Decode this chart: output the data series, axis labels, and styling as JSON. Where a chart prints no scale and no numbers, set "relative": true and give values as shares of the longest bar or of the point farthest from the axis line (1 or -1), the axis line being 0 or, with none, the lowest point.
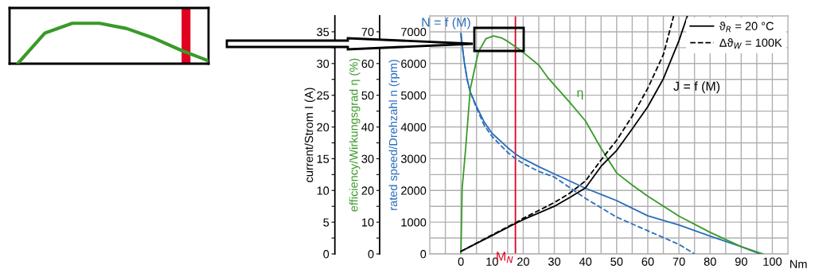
{
  "chart_data": [
    {
      "type": "line",
      "xlabel": "Nm",
      "ylabel": "rated speed/Drehzahl n (rpm)",
      "y2label": "efficiency/Wirkungsgrad η (%)",
      "y3label": "current/Strom I (A)",
      "xlim": [
        -10,
        105
      ],
      "xticks": [
        {
          "value": -5,
          "label": null
        },
        0,
        {
          "value": 5,
          "label": null
        },
        10,
        {
          "value": 15,
          "label": null
        },
        20,
        {
          "value": 25,
          "label": null
        },
        30,
        {
          "value": 35,
          "label": null
        },
        40,
        {
          "value": 45,
          "label": null
        },
        50,
        {
          "value": 55,
          "label": null
        },
        60,
        {
          "value": 65,
          "label": null
        },
        70,
        {
          "value": 75,
          "label": null
        },
        80,
        {
          "value": 85,
          "label": null
        },
        90,
        {
          "value": 95,
          "label": null
        },
        100
      ],
      "ylim": [
        0,
        7500
      ],
      "yticks": [
        0,
        {
          "value": 500,
          "label": null
        },
        1000,
        {
          "value": 1500,
          "label": null
        },
        2000,
        {
          "value": 2500,
          "label": null
        },
        3000,
        {
          "value": 3500,
          "label": null
        },
        4000,
        {
          "value": 4500,
          "label": null
        },
        5000,
        {
          "value": 5500,
          "label": null
        },
        6000,
        {
          "value": 6500,
          "label": null
        },
        7000
      ],
      "y2lim": [
        0,
        75
      ],
      "y2ticks": [
        0,
        {
          "value": 5,
          "label": null
        },
        10,
        {
          "value": 15,
          "label": null
        },
        20,
        {
          "value": 25,
          "label": null
        },
        30,
        {
          "value": 35,
          "label": null
        },
        40,
        {
          "value": 45,
          "label": null
        },
        50,
        {
          "value": 55,
          "label": null
        },
        60,
        {
          "value": 65,
          "label": null
        },
        70
      ],
      "y3lim": [
        0,
        37.5
      ],
      "y3ticks": [
        0,
        {
          "value": 2.5,
          "label": null
        },
        5,
        {
          "value": 7.5,
          "label": null
        },
        10,
        {
          "value": 12.5,
          "label": null
        },
        15,
        {
          "value": 17.5,
          "label": null
        },
        20,
        {
          "value": 22.5,
          "label": null
        },
        25,
        {
          "value": 27.5,
          "label": null
        },
        30,
        {
          "value": 32.5,
          "label": null
        },
        35
      ],
      "grid": true,
      "legend": "top right",
      "marker": "none",
      "series": [
        {
          "name": "N = f (M)",
          "color": "#2a6ebb",
          "line_style": "solid",
          "x": [
            0,
            0.5,
            1,
            2,
            3,
            5,
            7.5,
            10,
            15,
            17.5,
            20,
            25,
            30,
            40,
            50,
            60,
            70,
            80,
            90,
            96
          ],
          "values": [
            6950,
            6500,
            6100,
            5500,
            5100,
            4650,
            4150,
            3800,
            3350,
            3150,
            3000,
            2750,
            2520,
            2070,
            1680,
            1200,
            910,
            560,
            230,
            0
          ]
        },
        {
          "color": "#2a6ebb",
          "line_style": "dashed",
          "x": [
            0,
            0.5,
            1,
            2,
            3,
            5,
            7.5,
            10,
            15,
            17.5,
            20,
            25,
            30,
            40,
            50,
            60,
            70,
            75
          ],
          "values": [
            6950,
            6500,
            6100,
            5500,
            5100,
            4600,
            4050,
            3700,
            3200,
            3000,
            2850,
            2600,
            2420,
            1750,
            1160,
            730,
            300,
            0
          ]
        },
        {
          "name": "η",
          "color": "#3a9a2a",
          "line_style": "solid",
          "axis": "y2",
          "x": [
            0,
            0.4,
            1.5,
            3,
            5,
            5.8,
            8,
            10.5,
            13,
            15,
            17.5,
            20,
            25,
            27.7,
            35,
            40,
            45,
            50,
            55,
            60,
            70,
            80,
            90,
            97
          ],
          "values": [
            0,
            20.7,
            33,
            52,
            61,
            64,
            67.8,
            68.7,
            68.1,
            67,
            65.3,
            63.5,
            59.5,
            55.8,
            47.7,
            41.9,
            33.3,
            25.5,
            21.7,
            18.2,
            11.9,
            6.8,
            2.3,
            0
          ]
        },
        {
          "name": "ϑ$_{R}$ = 20 °C",
          "color": "#000000",
          "line_style": "solid",
          "axis": "y3",
          "x": [
            0,
            10,
            17.5,
            20,
            30,
            35,
            40,
            45,
            50,
            55,
            60,
            65,
            70,
            72.7
          ],
          "values": [
            0.4,
            2.9,
            4.8,
            5.4,
            7.5,
            8.9,
            10.4,
            13.8,
            16.3,
            19.7,
            23.2,
            27.6,
            33.6,
            37.5
          ]
        },
        {
          "name": "Δϑ$_{W}$ = 100K",
          "color": "#000000",
          "line_style": "dashed",
          "axis": "y3",
          "x": [
            0,
            10,
            17.5,
            20,
            30,
            35,
            40,
            45,
            50,
            55,
            60,
            65,
            68.3
          ],
          "values": [
            0.4,
            3.0,
            4.9,
            5.6,
            8.1,
            9.6,
            11.5,
            14.8,
            17.9,
            21.7,
            26.1,
            31.4,
            37.5
          ]
        }
      ],
      "ref_lines": [
        {
          "axis": "x",
          "value": 17.5,
          "label": "M$_{N}$",
          "color": "#e00020"
        }
      ],
      "annotations": [
        "J = f (M)"
      ]
    },
    {
      "type": "line",
      "relative": true,
      "categories": [
        null,
        null,
        null,
        null,
        null,
        null,
        null,
        null
      ],
      "series": [
        {
          "color": "#3a9a2a",
          "line_style": "solid",
          "values": [
            0,
            0.76,
            1,
            1,
            0.87,
            0.63,
            0.33,
            0.07
          ]
        }
      ]
    }
  ]
}
